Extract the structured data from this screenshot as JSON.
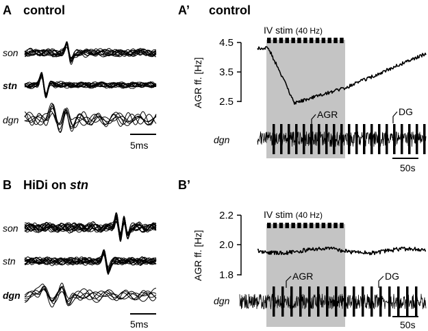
{
  "panels": {
    "A": {
      "letter": "A",
      "title": "control",
      "traces": [
        {
          "label": "son"
        },
        {
          "label": "stn"
        },
        {
          "label": "dgn"
        }
      ],
      "scalebar": "5ms"
    },
    "B": {
      "letter": "B",
      "title_prefix": "HiDi on ",
      "title_bold_italic": "stn",
      "traces": [
        {
          "label": "son"
        },
        {
          "label": "stn"
        },
        {
          "label": "dgn"
        }
      ],
      "scalebar": "5ms"
    },
    "A2": {
      "letter": "A’",
      "title": "control",
      "stim_label": "IV stim",
      "stim_freq": "(40 Hz)",
      "ylabel": "AGR ff. [Hz]",
      "yticks": [
        "4.5",
        "3.5",
        "2.5"
      ],
      "trace_label": "dgn",
      "annot_agr": "AGR",
      "annot_dg": "DG",
      "scalebar": "50s"
    },
    "B2": {
      "letter": "B’",
      "title": "",
      "stim_label": "IV stim",
      "stim_freq": "(40 Hz)",
      "ylabel": "AGR ff. [Hz]",
      "yticks": [
        "2.2",
        "2.0",
        "1.8"
      ],
      "trace_label": "dgn",
      "annot_agr": "AGR",
      "annot_dg": "DG",
      "scalebar": "50s"
    }
  },
  "colors": {
    "stim_shading": "#c4c4c4",
    "trace": "#000000"
  }
}
